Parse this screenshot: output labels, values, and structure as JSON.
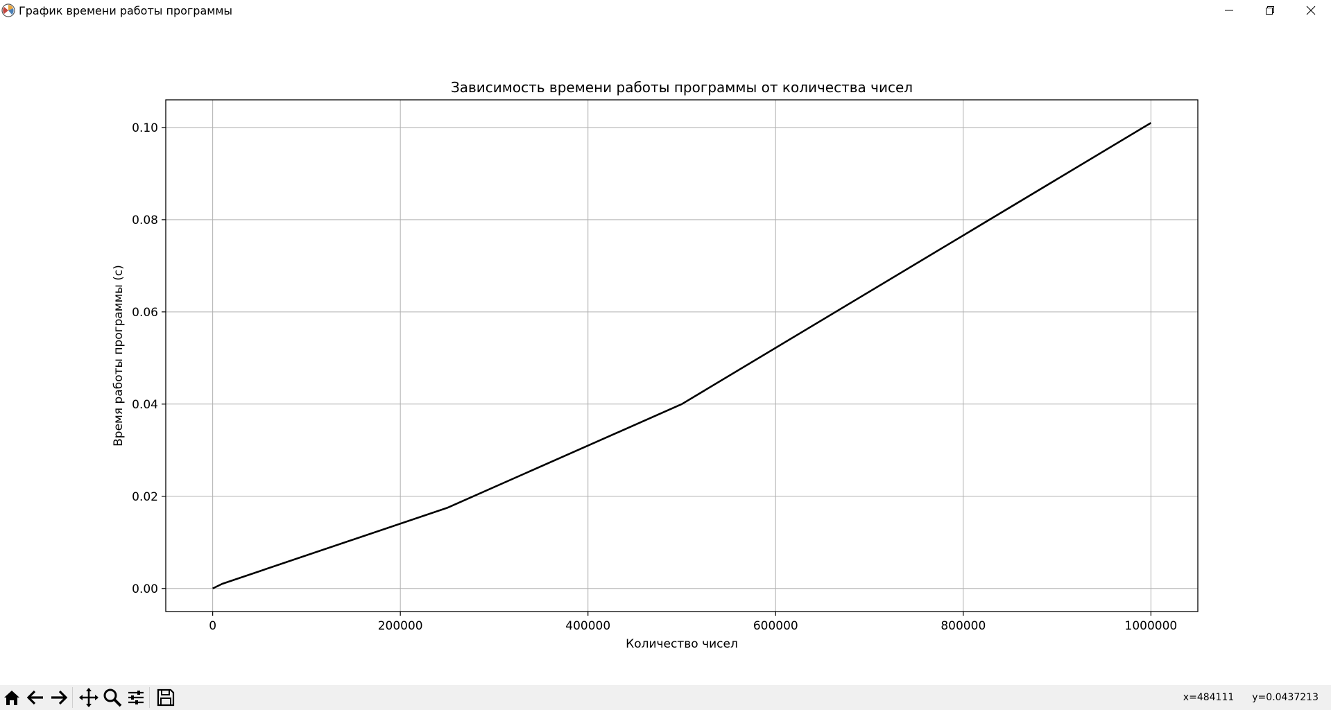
{
  "window": {
    "title": "График времени работы программы",
    "icons": {
      "app": "matplotlib-icon",
      "minimize": "minimize-icon",
      "maximize": "restore-icon",
      "close": "close-icon"
    }
  },
  "chart_data": {
    "type": "line",
    "title": "Зависимость времени работы программы от количества чисел",
    "xlabel": "Количество чисел",
    "ylabel": "Время работы программы (с)",
    "xlim": [
      -50000,
      1050000
    ],
    "ylim": [
      -0.005,
      0.106
    ],
    "xticks": [
      0,
      200000,
      400000,
      600000,
      800000,
      1000000
    ],
    "xtick_labels": [
      "0",
      "200000",
      "400000",
      "600000",
      "800000",
      "1000000"
    ],
    "yticks": [
      0.0,
      0.02,
      0.04,
      0.06,
      0.08,
      0.1
    ],
    "ytick_labels": [
      "0.00",
      "0.02",
      "0.04",
      "0.06",
      "0.08",
      "0.10"
    ],
    "grid": true,
    "series": [
      {
        "color": "#000000",
        "x": [
          0,
          10000,
          250000,
          500000,
          1000000
        ],
        "y": [
          0.0,
          0.001,
          0.0175,
          0.04,
          0.101
        ]
      }
    ]
  },
  "toolbar": {
    "buttons": [
      "home-icon",
      "back-icon",
      "forward-icon",
      "pan-icon",
      "zoom-icon",
      "configure-icon",
      "save-icon"
    ],
    "coord_x": "x=484111",
    "coord_y": "y=0.0437213"
  }
}
